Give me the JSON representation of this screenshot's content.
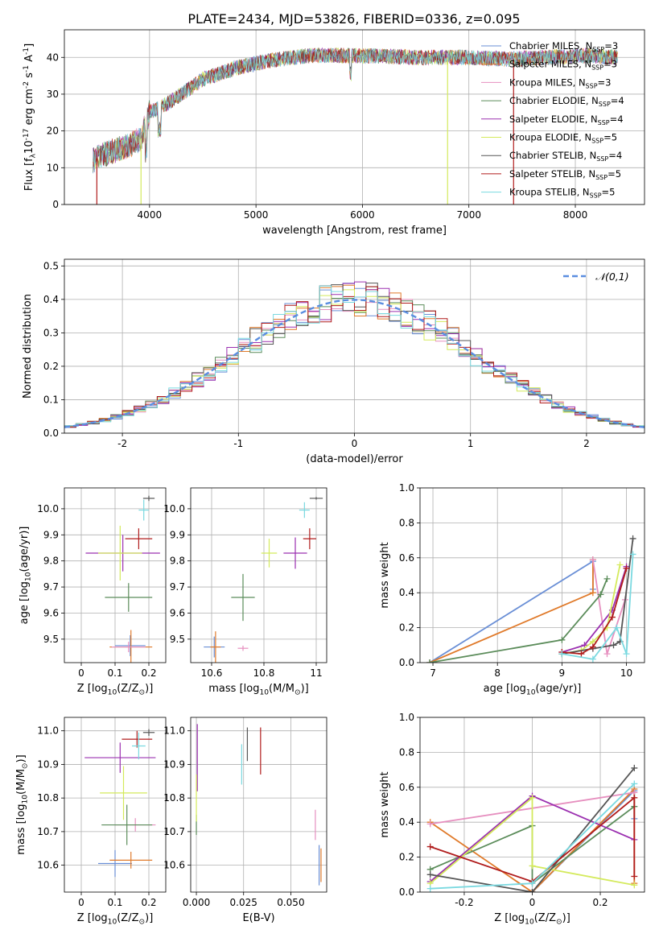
{
  "figure_title": "PLATE=2434, MJD=53826, FIBERID=0336, z=0.095",
  "colors": {
    "Chabrier MILES": "#6a8fd6",
    "Salpeter MILES": "#e07a2a",
    "Kroupa MILES": "#e68fbf",
    "Chabrier ELODIE": "#5b8c5a",
    "Salpeter ELODIE": "#9b30b0",
    "Kroupa ELODIE": "#d4ea5c",
    "Chabrier STELIB": "#555555",
    "Salpeter STELIB": "#b01c1c",
    "Kroupa STELIB": "#7ad9e0",
    "normal": "#5b8ee0"
  },
  "chart_data": [
    {
      "id": "spectrum",
      "type": "line",
      "xlabel": "wavelength [Angstrom, rest frame]",
      "ylabel": "Flux [f$_\\lambda$10$^{-17}$ erg cm$^{-2}$ s$^{-1}$ A$^{-1}$]",
      "xlim": [
        3200,
        8650
      ],
      "ylim": [
        0,
        47.5
      ],
      "xticks": [
        4000,
        5000,
        6000,
        7000,
        8000
      ],
      "yticks": [
        0,
        10,
        20,
        30,
        40
      ],
      "legend_loc": "right",
      "legend": [
        {
          "label": "Chabrier MILES, N",
          "sub": "SSP",
          "tail": "=3"
        },
        {
          "label": "Salpeter MILES, N",
          "sub": "SSP",
          "tail": "=3"
        },
        {
          "label": "Kroupa MILES, N",
          "sub": "SSP",
          "tail": "=3"
        },
        {
          "label": "Chabrier ELODIE, N",
          "sub": "SSP",
          "tail": "=4"
        },
        {
          "label": "Salpeter ELODIE, N",
          "sub": "SSP",
          "tail": "=4"
        },
        {
          "label": "Kroupa ELODIE, N",
          "sub": "SSP",
          "tail": "=5"
        },
        {
          "label": "Chabrier STELIB, N",
          "sub": "SSP",
          "tail": "=4"
        },
        {
          "label": "Salpeter STELIB, N",
          "sub": "SSP",
          "tail": "=5"
        },
        {
          "label": "Kroupa STELIB, N",
          "sub": "SSP",
          "tail": "=5"
        }
      ],
      "continuum_points": [
        [
          3470,
          12
        ],
        [
          3600,
          14
        ],
        [
          3800,
          16
        ],
        [
          3920,
          18
        ],
        [
          4000,
          25
        ],
        [
          4200,
          28
        ],
        [
          4500,
          34
        ],
        [
          4800,
          37
        ],
        [
          5100,
          39
        ],
        [
          5500,
          40.5
        ],
        [
          6000,
          40.5
        ],
        [
          6500,
          40
        ],
        [
          7000,
          40
        ],
        [
          7400,
          39.5
        ],
        [
          7700,
          40
        ],
        [
          8100,
          40.5
        ],
        [
          8400,
          40
        ]
      ],
      "dips": [
        {
          "wavelength": 3505,
          "model": "Salpeter STELIB",
          "y": 0
        },
        {
          "wavelength": 3920,
          "model": "Kroupa ELODIE",
          "y": 0
        },
        {
          "wavelength": 6800,
          "model": "Kroupa ELODIE",
          "y": 0
        },
        {
          "wavelength": 7420,
          "model": "Salpeter STELIB",
          "y": 0
        }
      ]
    },
    {
      "id": "residuals",
      "type": "histogram",
      "xlabel": "(data-model)/error",
      "ylabel": "Normed distribution",
      "xlim": [
        -2.5,
        2.5
      ],
      "ylim": [
        0,
        0.52
      ],
      "xticks": [
        -2,
        -1,
        0,
        1,
        2
      ],
      "yticks": [
        0.0,
        0.1,
        0.2,
        0.3,
        0.4,
        0.5
      ],
      "bin_width": 0.1,
      "reference_curve": {
        "label": "$\\mathcal{N}(0,1)$",
        "mean": 0,
        "sigma": 1
      }
    },
    {
      "id": "age_vs_Z",
      "type": "errorbar",
      "xlabel": "Z [log$_{10}$(Z/Z$_\\odot$)]",
      "ylabel": "age  [log$_{10}$(age/yr)]",
      "xlim": [
        -0.05,
        0.25
      ],
      "ylim": [
        9.41,
        10.08
      ],
      "xticks": [
        0.0,
        0.1,
        0.2
      ],
      "yticks": [
        9.5,
        9.6,
        9.7,
        9.8,
        9.9,
        10.0
      ],
      "points": [
        {
          "model": "Chabrier MILES",
          "x": 0.145,
          "y": 9.475,
          "xerr": 0.045,
          "yerr": 0.04
        },
        {
          "model": "Salpeter MILES",
          "x": 0.147,
          "y": 9.47,
          "xerr": 0.063,
          "yerr": 0.065
        },
        {
          "model": "Kroupa MILES",
          "x": 0.14,
          "y": 9.47,
          "xerr": 0.05,
          "yerr": 0.02
        },
        {
          "model": "Chabrier ELODIE",
          "x": 0.14,
          "y": 9.66,
          "xerr": 0.07,
          "yerr": 0.055
        },
        {
          "model": "Salpeter ELODIE",
          "x": 0.123,
          "y": 9.83,
          "xerr": 0.11,
          "yerr": 0.07
        },
        {
          "model": "Kroupa ELODIE",
          "x": 0.115,
          "y": 9.83,
          "xerr": 0.065,
          "yerr": 0.105
        },
        {
          "model": "Chabrier STELIB",
          "x": 0.2,
          "y": 10.04,
          "xerr": 0.017,
          "yerr": 0.01
        },
        {
          "model": "Salpeter STELIB",
          "x": 0.17,
          "y": 9.885,
          "xerr": 0.04,
          "yerr": 0.04
        },
        {
          "model": "Kroupa STELIB",
          "x": 0.185,
          "y": 9.995,
          "xerr": 0.015,
          "yerr": 0.04
        }
      ]
    },
    {
      "id": "age_vs_mass",
      "type": "errorbar",
      "xlabel": "mass [log$_{10}$(M/M$_\\odot$)]",
      "ylabel": "",
      "xlim": [
        10.52,
        11.04
      ],
      "ylim": [
        9.41,
        10.08
      ],
      "xticks": [
        10.6,
        10.8,
        11.0
      ],
      "yticks": [
        9.5,
        9.6,
        9.7,
        9.8,
        9.9,
        10.0
      ],
      "points": [
        {
          "model": "Chabrier MILES",
          "x": 10.61,
          "y": 9.47,
          "xerr": 0.04,
          "yerr": 0.04
        },
        {
          "model": "Salpeter MILES",
          "x": 10.615,
          "y": 9.47,
          "xerr": 0.02,
          "yerr": 0.06
        },
        {
          "model": "Kroupa MILES",
          "x": 10.72,
          "y": 9.465,
          "xerr": 0.02,
          "yerr": 0.01
        },
        {
          "model": "Chabrier ELODIE",
          "x": 10.72,
          "y": 9.66,
          "xerr": 0.045,
          "yerr": 0.09
        },
        {
          "model": "Salpeter ELODIE",
          "x": 10.92,
          "y": 9.83,
          "xerr": 0.045,
          "yerr": 0.06
        },
        {
          "model": "Kroupa ELODIE",
          "x": 10.82,
          "y": 9.83,
          "xerr": 0.03,
          "yerr": 0.055
        },
        {
          "model": "Chabrier STELIB",
          "x": 11.0,
          "y": 10.04,
          "xerr": 0.025,
          "yerr": 0.005
        },
        {
          "model": "Salpeter STELIB",
          "x": 10.975,
          "y": 9.885,
          "xerr": 0.025,
          "yerr": 0.04
        },
        {
          "model": "Kroupa STELIB",
          "x": 10.955,
          "y": 9.995,
          "xerr": 0.02,
          "yerr": 0.03
        }
      ]
    },
    {
      "id": "weight_vs_age",
      "type": "line",
      "xlabel": "age  [log$_{10}$(age/yr)]",
      "ylabel": "mass weight",
      "xlim": [
        6.8,
        10.28
      ],
      "ylim": [
        0,
        1
      ],
      "xticks": [
        7,
        8,
        9,
        10
      ],
      "yticks": [
        0.0,
        0.2,
        0.4,
        0.6,
        0.8,
        1.0
      ],
      "series": [
        {
          "model": "Chabrier MILES",
          "x": [
            6.95,
            9.48,
            9.48
          ],
          "y": [
            0.0,
            0.58,
            0.42
          ]
        },
        {
          "model": "Salpeter MILES",
          "x": [
            6.95,
            9.48,
            9.48
          ],
          "y": [
            0.0,
            0.4,
            0.59
          ]
        },
        {
          "model": "Kroupa MILES",
          "x": [
            9.48,
            9.7,
            9.98
          ],
          "y": [
            0.59,
            0.05,
            0.36
          ]
        },
        {
          "model": "Chabrier ELODIE",
          "x": [
            6.95,
            9.0,
            9.6,
            9.7
          ],
          "y": [
            0.0,
            0.13,
            0.39,
            0.48
          ]
        },
        {
          "model": "Salpeter ELODIE",
          "x": [
            9.0,
            9.35,
            9.78,
            10.0
          ],
          "y": [
            0.06,
            0.1,
            0.3,
            0.55
          ]
        },
        {
          "model": "Kroupa ELODIE",
          "x": [
            9.0,
            9.3,
            9.48,
            9.7,
            9.9
          ],
          "y": [
            0.05,
            0.07,
            0.12,
            0.2,
            0.56
          ]
        },
        {
          "model": "Chabrier STELIB",
          "x": [
            9.0,
            9.48,
            9.8,
            9.9,
            10.1
          ],
          "y": [
            0.05,
            0.08,
            0.1,
            0.12,
            0.71
          ]
        },
        {
          "model": "Salpeter STELIB",
          "x": [
            9.0,
            9.3,
            9.48,
            9.78,
            10.0
          ],
          "y": [
            0.06,
            0.05,
            0.09,
            0.26,
            0.54
          ]
        },
        {
          "model": "Kroupa STELIB",
          "x": [
            9.0,
            9.48,
            9.85,
            10.0,
            10.1
          ],
          "y": [
            0.05,
            0.02,
            0.2,
            0.05,
            0.62
          ]
        }
      ]
    },
    {
      "id": "mass_vs_Z",
      "type": "errorbar",
      "xlabel": "Z [log$_{10}$(Z/Z$_\\odot$)]",
      "ylabel": "mass [log$_{10}$(M/M$_\\odot$)]",
      "xlim": [
        -0.05,
        0.25
      ],
      "ylim": [
        10.52,
        11.04
      ],
      "xticks": [
        0.0,
        0.1,
        0.2
      ],
      "yticks": [
        10.6,
        10.7,
        10.8,
        10.9,
        11.0
      ],
      "points": [
        {
          "model": "Chabrier MILES",
          "x": 0.1,
          "y": 10.605,
          "xerr": 0.05,
          "yerr": 0.04
        },
        {
          "model": "Salpeter MILES",
          "x": 0.147,
          "y": 10.615,
          "xerr": 0.063,
          "yerr": 0.025
        },
        {
          "model": "Kroupa MILES",
          "x": 0.16,
          "y": 10.72,
          "xerr": 0.06,
          "yerr": 0.02
        },
        {
          "model": "Chabrier ELODIE",
          "x": 0.135,
          "y": 10.72,
          "xerr": 0.075,
          "yerr": 0.06
        },
        {
          "model": "Salpeter ELODIE",
          "x": 0.115,
          "y": 10.92,
          "xerr": 0.105,
          "yerr": 0.045
        },
        {
          "model": "Kroupa ELODIE",
          "x": 0.125,
          "y": 10.815,
          "xerr": 0.07,
          "yerr": 0.08
        },
        {
          "model": "Chabrier STELIB",
          "x": 0.2,
          "y": 10.995,
          "xerr": 0.017,
          "yerr": 0.01
        },
        {
          "model": "Salpeter STELIB",
          "x": 0.165,
          "y": 10.975,
          "xerr": 0.045,
          "yerr": 0.025
        },
        {
          "model": "Kroupa STELIB",
          "x": 0.17,
          "y": 10.955,
          "xerr": 0.02,
          "yerr": 0.04
        }
      ]
    },
    {
      "id": "mass_vs_ebv",
      "type": "errorbar",
      "xlabel": "E(B-V)",
      "ylabel": "",
      "xlim": [
        -0.003,
        0.069
      ],
      "ylim": [
        10.52,
        11.04
      ],
      "xticks": [
        0.0,
        0.025,
        0.05
      ],
      "xticklabels": [
        "0.000",
        "0.025",
        "0.050"
      ],
      "yticks": [
        10.6,
        10.7,
        10.8,
        10.9,
        11.0
      ],
      "points": [
        {
          "model": "Chabrier MILES",
          "x": 0.065,
          "y": 10.6,
          "xerr": 0.0,
          "yerr": 0.06
        },
        {
          "model": "Salpeter MILES",
          "x": 0.066,
          "y": 10.6,
          "xerr": 0.0,
          "yerr": 0.05
        },
        {
          "model": "Kroupa MILES",
          "x": 0.063,
          "y": 10.72,
          "xerr": 0.0,
          "yerr": 0.045
        },
        {
          "model": "Chabrier ELODIE",
          "x": 0.0,
          "y": 10.72,
          "xerr": 0.0,
          "yerr": 0.03
        },
        {
          "model": "Salpeter ELODIE",
          "x": 0.0005,
          "y": 10.92,
          "xerr": 0.0,
          "yerr": 0.1
        },
        {
          "model": "Kroupa ELODIE",
          "x": 0.0,
          "y": 10.8,
          "xerr": 0.0,
          "yerr": 0.07
        },
        {
          "model": "Chabrier STELIB",
          "x": 0.027,
          "y": 10.96,
          "xerr": 0.0,
          "yerr": 0.05
        },
        {
          "model": "Salpeter STELIB",
          "x": 0.034,
          "y": 10.94,
          "xerr": 0.0,
          "yerr": 0.07
        },
        {
          "model": "Kroupa STELIB",
          "x": 0.024,
          "y": 10.9,
          "xerr": 0.0,
          "yerr": 0.06
        }
      ]
    },
    {
      "id": "weight_vs_Z",
      "type": "line",
      "xlabel": "Z [log$_{10}$(Z/Z$_\\odot$)]",
      "ylabel": "mass weight",
      "xlim": [
        -0.33,
        0.33
      ],
      "ylim": [
        0,
        1
      ],
      "xticks": [
        -0.2,
        0.0,
        0.2
      ],
      "yticks": [
        0.0,
        0.2,
        0.4,
        0.6,
        0.8,
        1.0
      ],
      "series": [
        {
          "model": "Chabrier MILES",
          "x": [
            0.0,
            0.3,
            0.3
          ],
          "y": [
            0.0,
            0.58,
            0.42
          ]
        },
        {
          "model": "Salpeter MILES",
          "x": [
            -0.3,
            0.0,
            0.3,
            0.3
          ],
          "y": [
            0.4,
            0.0,
            0.59,
            0.05
          ]
        },
        {
          "model": "Kroupa MILES",
          "x": [
            -0.3,
            0.3
          ],
          "y": [
            0.39,
            0.57
          ]
        },
        {
          "model": "Chabrier ELODIE",
          "x": [
            -0.3,
            0.0,
            0.0,
            0.3
          ],
          "y": [
            0.13,
            0.38,
            0.05,
            0.49
          ]
        },
        {
          "model": "Salpeter ELODIE",
          "x": [
            -0.3,
            0.0,
            0.3
          ],
          "y": [
            0.06,
            0.55,
            0.3
          ]
        },
        {
          "model": "Kroupa ELODIE",
          "x": [
            -0.3,
            0.0,
            0.0,
            0.3
          ],
          "y": [
            0.05,
            0.54,
            0.15,
            0.04
          ]
        },
        {
          "model": "Chabrier STELIB",
          "x": [
            -0.3,
            0.0,
            0.3
          ],
          "y": [
            0.1,
            0.0,
            0.71
          ]
        },
        {
          "model": "Salpeter STELIB",
          "x": [
            -0.3,
            0.0,
            0.3,
            0.3
          ],
          "y": [
            0.26,
            0.06,
            0.54,
            0.09
          ]
        },
        {
          "model": "Kroupa STELIB",
          "x": [
            -0.3,
            0.0,
            0.3
          ],
          "y": [
            0.02,
            0.05,
            0.62
          ]
        }
      ]
    }
  ]
}
